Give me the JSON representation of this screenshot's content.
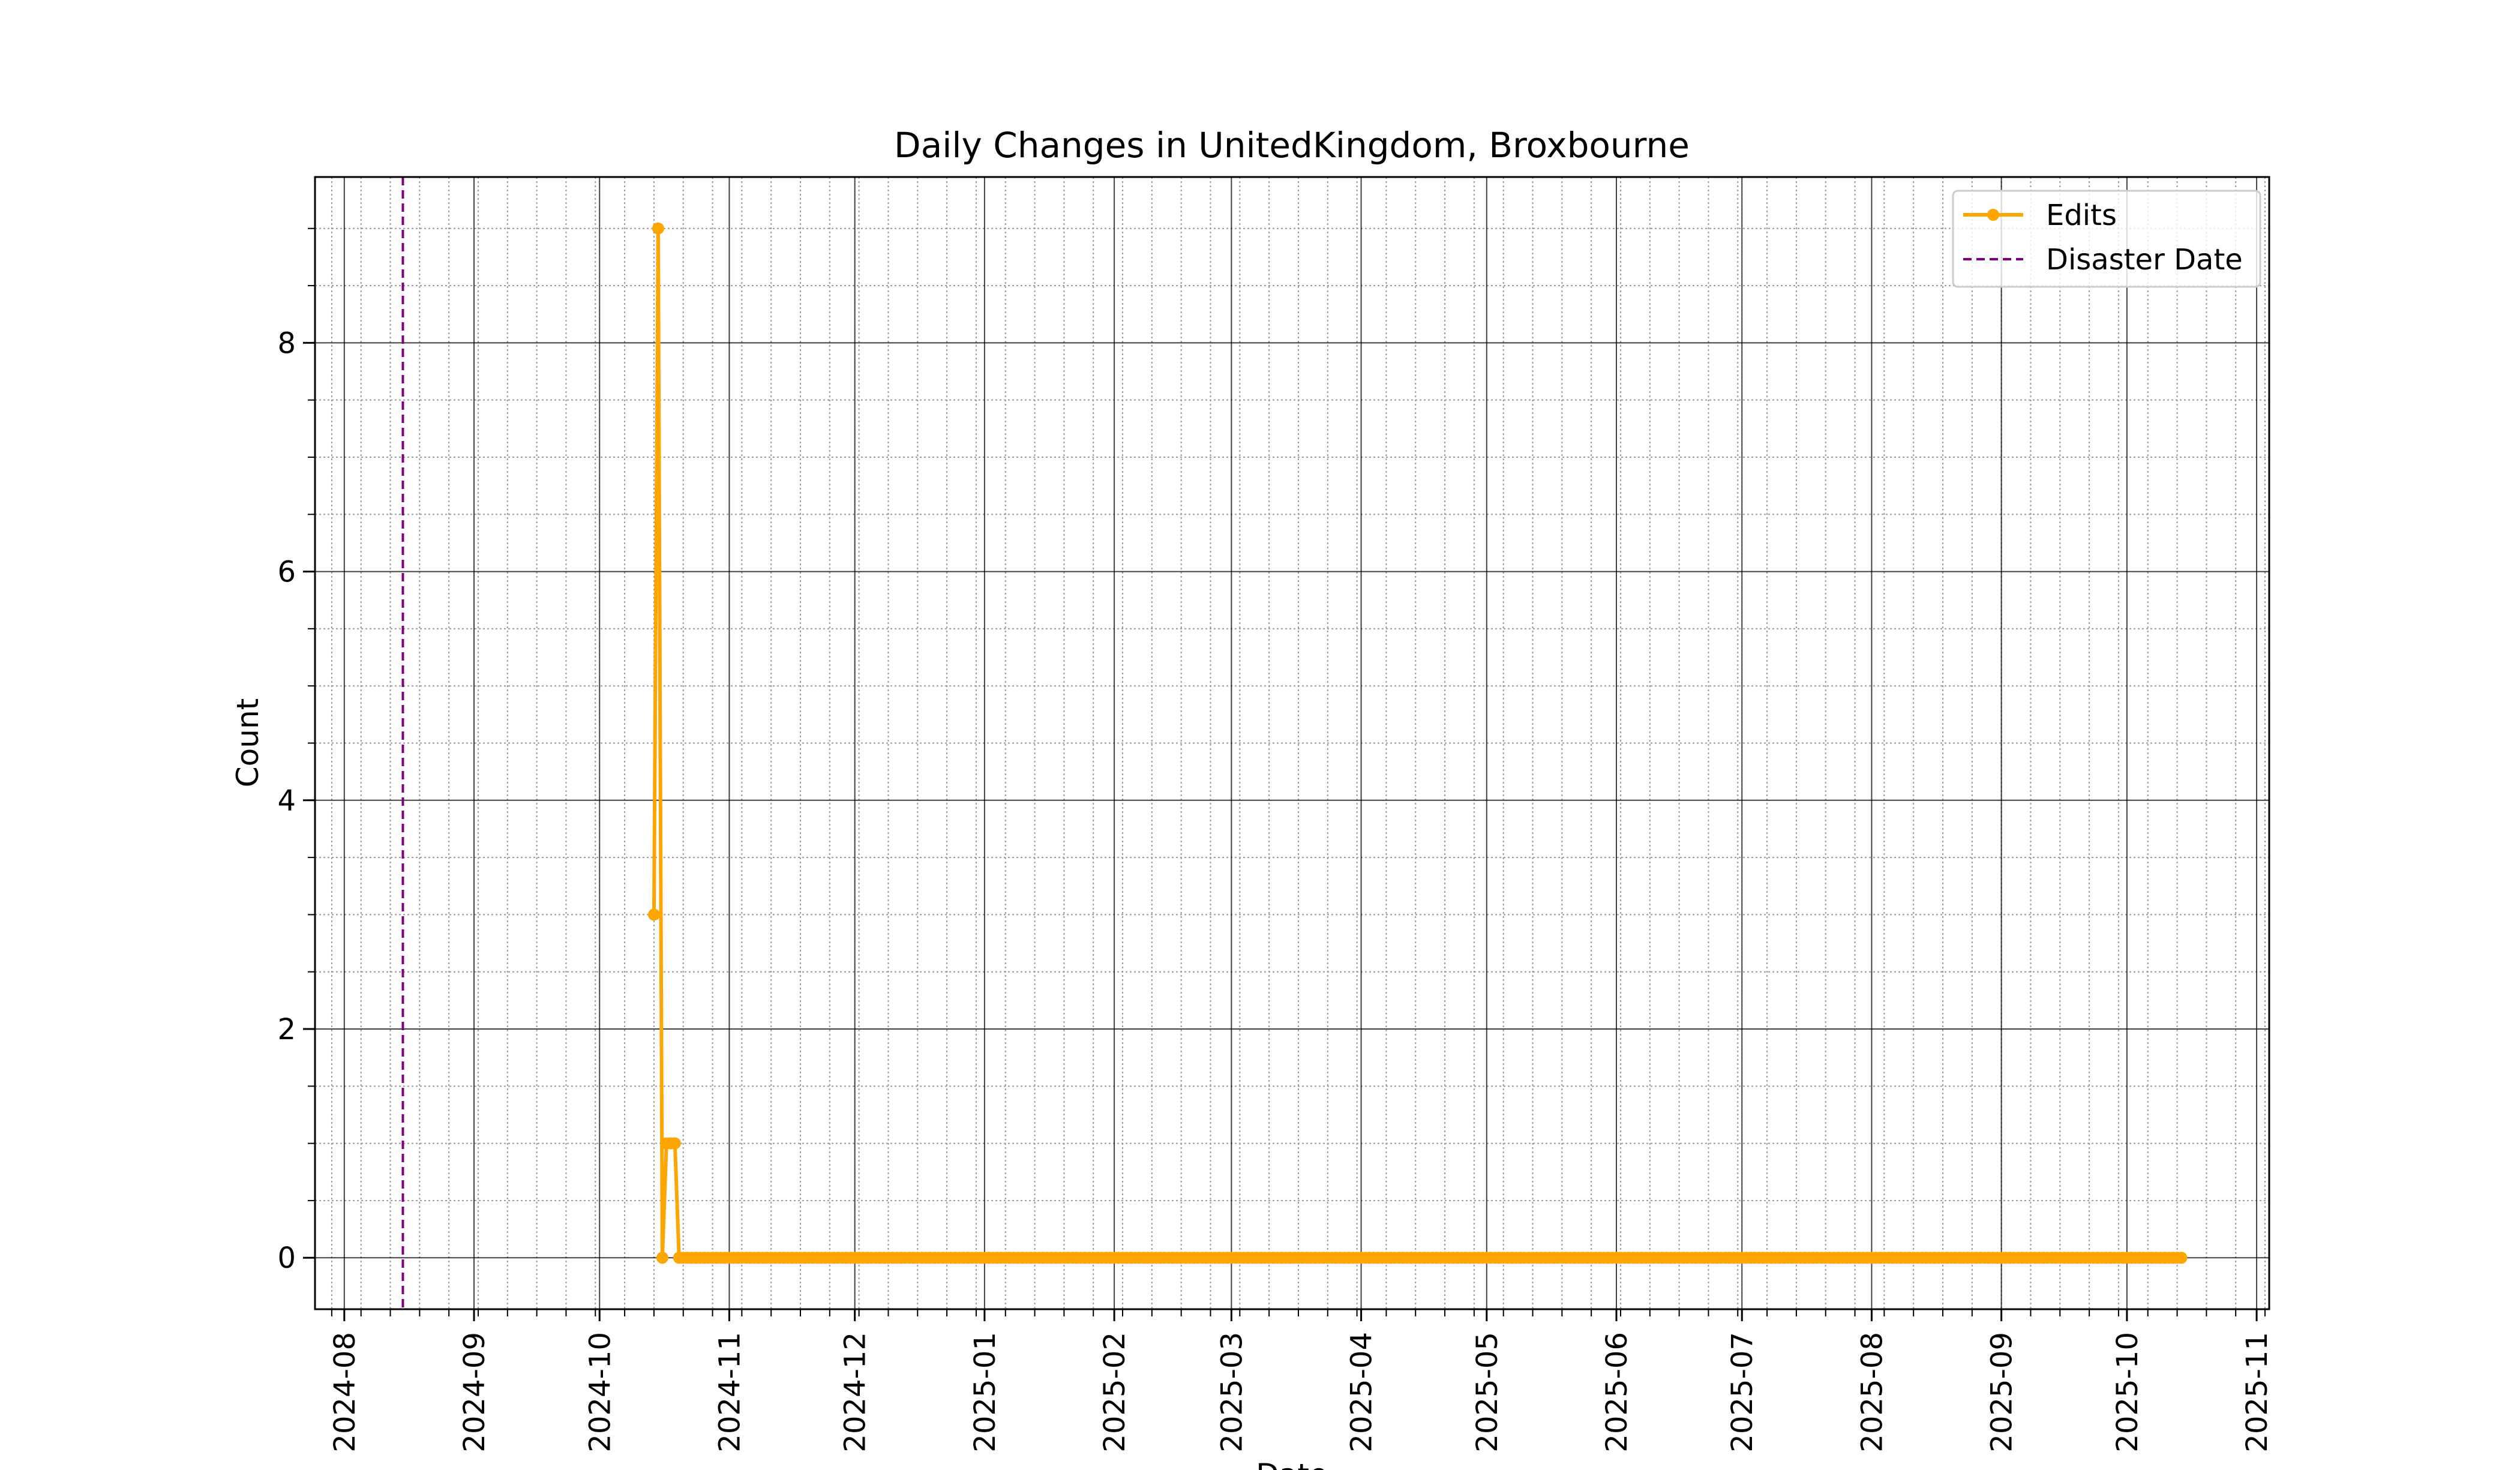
{
  "chart_data": {
    "type": "line",
    "title": "Daily Changes in UnitedKingdom, Broxbourne",
    "xlabel": "Date",
    "ylabel": "Count",
    "xlim": [
      "2024-07-25",
      "2025-11-04"
    ],
    "ylim": [
      -0.45,
      9.45
    ],
    "y_ticks": [
      0,
      2,
      4,
      6,
      8
    ],
    "x_ticks": [
      "2024-08",
      "2024-09",
      "2024-10",
      "2024-11",
      "2024-12",
      "2025-01",
      "2025-02",
      "2025-03",
      "2025-04",
      "2025-05",
      "2025-06",
      "2025-07",
      "2025-08",
      "2025-09",
      "2025-10",
      "2025-11"
    ],
    "grid": true,
    "legend": "top-right",
    "series": [
      {
        "name": "Edits",
        "color": "#FFA500",
        "marker": "circle",
        "x_start": "2024-10-14",
        "x_end": "2025-10-14",
        "step": "1 day",
        "values_first_days": [
          3,
          9,
          0,
          1,
          1,
          1,
          0
        ],
        "values_remaining": 0
      }
    ],
    "annotations": [
      {
        "type": "vline",
        "name": "Disaster Date",
        "x": "2024-08-15",
        "color": "#800080",
        "style": "dashed"
      }
    ]
  }
}
